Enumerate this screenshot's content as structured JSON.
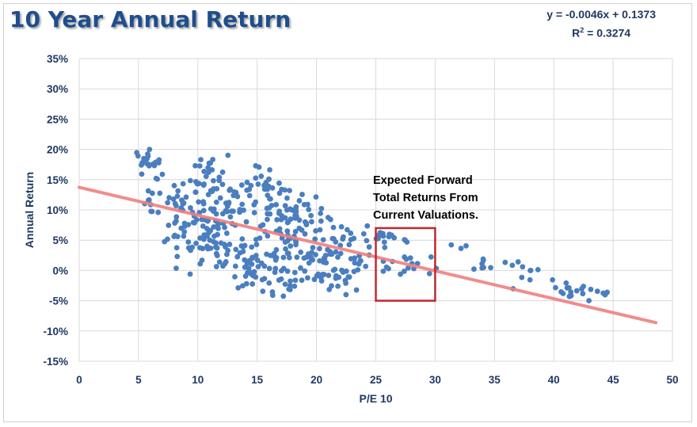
{
  "title": "10 Year Annual Return",
  "equation": {
    "line1": "y = -0.0046x + 0.1373",
    "r2_label": "R",
    "r2_sup": "2",
    "r2_value": " = 0.3274"
  },
  "colors": {
    "points": "#4a7ebf",
    "trendline": "#f08080",
    "annotation_box": "#c0282d",
    "text": "#1f3864",
    "grid": "#d9d9d9"
  },
  "chart_data": {
    "type": "scatter",
    "xlabel": "P/E 10",
    "ylabel": "Annual Return",
    "xlim": [
      0,
      50
    ],
    "ylim": [
      -0.15,
      0.35
    ],
    "x_ticks": [
      0,
      5,
      10,
      15,
      20,
      25,
      30,
      35,
      40,
      45,
      50
    ],
    "y_ticks": [
      -0.15,
      -0.1,
      -0.05,
      0,
      0.05,
      0.1,
      0.15,
      0.2,
      0.25,
      0.3,
      0.35
    ],
    "y_tick_labels": [
      "-15%",
      "-10%",
      "-5%",
      "0%",
      "5%",
      "10%",
      "15%",
      "20%",
      "25%",
      "30%",
      "35%"
    ],
    "grid": true,
    "trendline": {
      "slope": -0.0046,
      "intercept": 0.1373,
      "x_range": [
        0,
        48.6
      ]
    },
    "annotation": {
      "lines": [
        "Expected Forward",
        "Total Returns From",
        "Current Valuations."
      ],
      "box_x": [
        25,
        30
      ],
      "box_y": [
        -0.05,
        0.07
      ]
    },
    "clusters": [
      {
        "cx": 5.4,
        "cy": 0.18,
        "sx": 0.5,
        "sy": 0.016,
        "n": 12
      },
      {
        "cx": 6.5,
        "cy": 0.17,
        "sx": 0.5,
        "sy": 0.02,
        "n": 10
      },
      {
        "cx": 6.0,
        "cy": 0.105,
        "sx": 0.6,
        "sy": 0.025,
        "n": 10
      },
      {
        "cx": 7.8,
        "cy": 0.055,
        "sx": 0.6,
        "sy": 0.03,
        "n": 10
      },
      {
        "cx": 9.0,
        "cy": 0.105,
        "sx": 1.0,
        "sy": 0.025,
        "n": 30
      },
      {
        "cx": 11.0,
        "cy": 0.085,
        "sx": 1.3,
        "sy": 0.035,
        "n": 45
      },
      {
        "cx": 10.5,
        "cy": 0.04,
        "sx": 1.3,
        "sy": 0.025,
        "n": 25
      },
      {
        "cx": 11.5,
        "cy": 0.155,
        "sx": 1.2,
        "sy": 0.018,
        "n": 22
      },
      {
        "cx": 13.5,
        "cy": 0.105,
        "sx": 1.5,
        "sy": 0.025,
        "n": 30
      },
      {
        "cx": 14.0,
        "cy": 0.03,
        "sx": 1.5,
        "sy": 0.02,
        "n": 30
      },
      {
        "cx": 15.5,
        "cy": 0.14,
        "sx": 1.5,
        "sy": 0.018,
        "n": 25
      },
      {
        "cx": 15.0,
        "cy": -0.01,
        "sx": 1.3,
        "sy": 0.02,
        "n": 25
      },
      {
        "cx": 17.0,
        "cy": 0.09,
        "sx": 1.5,
        "sy": 0.025,
        "n": 35
      },
      {
        "cx": 17.5,
        "cy": 0.03,
        "sx": 1.5,
        "sy": 0.022,
        "n": 30
      },
      {
        "cx": 17.5,
        "cy": -0.02,
        "sx": 1.2,
        "sy": 0.015,
        "n": 18
      },
      {
        "cx": 19.5,
        "cy": 0.08,
        "sx": 1.3,
        "sy": 0.02,
        "n": 22
      },
      {
        "cx": 20.5,
        "cy": 0.04,
        "sx": 1.5,
        "sy": 0.02,
        "n": 25
      },
      {
        "cx": 21.5,
        "cy": -0.015,
        "sx": 1.5,
        "sy": 0.015,
        "n": 25
      },
      {
        "cx": 23.0,
        "cy": 0.05,
        "sx": 1.5,
        "sy": 0.015,
        "n": 18
      },
      {
        "cx": 23.5,
        "cy": 0.01,
        "sx": 1.2,
        "sy": 0.015,
        "n": 12
      },
      {
        "cx": 26.5,
        "cy": 0.055,
        "sx": 1.2,
        "sy": 0.006,
        "n": 14
      },
      {
        "cx": 28.0,
        "cy": 0.01,
        "sx": 1.5,
        "sy": 0.012,
        "n": 12
      },
      {
        "cx": 31.0,
        "cy": 0.02,
        "sx": 1.8,
        "sy": 0.02,
        "n": 10
      },
      {
        "cx": 35.0,
        "cy": 0.01,
        "sx": 1.5,
        "sy": 0.008,
        "n": 8
      },
      {
        "cx": 38.5,
        "cy": -0.015,
        "sx": 1.5,
        "sy": 0.015,
        "n": 8
      },
      {
        "cx": 42.5,
        "cy": -0.035,
        "sx": 1.5,
        "sy": 0.01,
        "n": 18
      }
    ]
  }
}
